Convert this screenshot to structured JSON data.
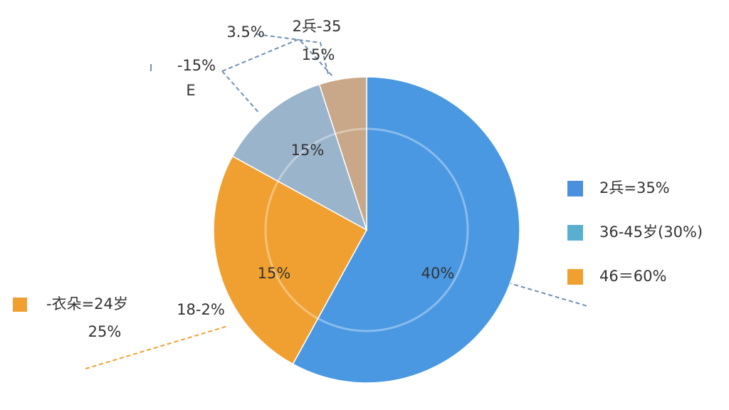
{
  "chart_data": {
    "type": "pie",
    "values": [
      58,
      25,
      12,
      5
    ],
    "colors": [
      "#4a98e2",
      "#f0a030",
      "#9ab4cc",
      "#c8a888"
    ],
    "annotations": [
      "3.5%",
      "2兵-35",
      "15%",
      "-15%",
      "E",
      "40%",
      "15%",
      "15%",
      "18-2%"
    ],
    "legend": [
      {
        "label": "2兵=35%",
        "color": "#4a90dc"
      },
      {
        "label": "36-45岁(30%)",
        "color": "#5aaed0"
      },
      {
        "label": "46＝60%",
        "color": "#f0a030"
      }
    ],
    "side_legend": {
      "label": "-衣朵=24岁",
      "sublabel": "25%",
      "color": "#f0a030"
    }
  }
}
